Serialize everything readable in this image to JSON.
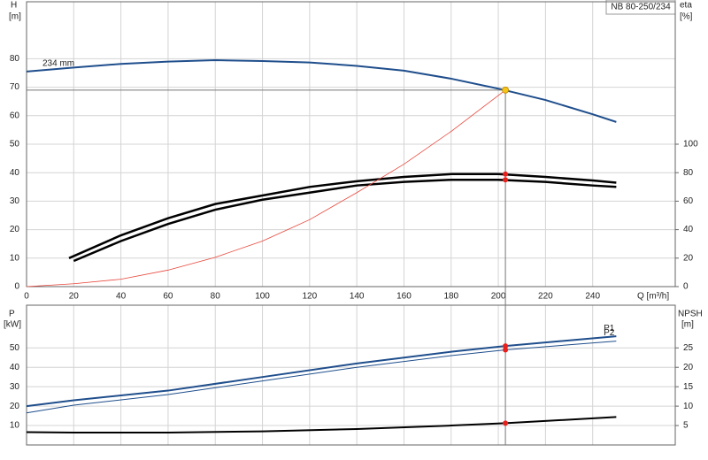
{
  "chart_data": [
    {
      "type": "line",
      "title": "NB 80-250/234",
      "xlabel": "Q [m³/h]",
      "ylabel": "H",
      "yunit": "[m]",
      "y2label": "eta",
      "y2unit": "[%]",
      "xlim": [
        0,
        275
      ],
      "xticks": [
        0,
        20,
        40,
        60,
        80,
        100,
        120,
        140,
        160,
        180,
        200,
        220,
        240
      ],
      "ylim": [
        0,
        100
      ],
      "yticks": [
        0,
        10,
        20,
        30,
        40,
        50,
        60,
        70,
        80
      ],
      "y2lim": [
        0,
        200
      ],
      "y2ticks": [
        0,
        20,
        40,
        60,
        80,
        100
      ],
      "grid": true,
      "series": [
        {
          "name": "234 mm",
          "label_position": "start",
          "color": "#1f4e8c",
          "width": 2,
          "x": [
            0,
            20,
            40,
            60,
            80,
            100,
            120,
            140,
            160,
            180,
            200,
            220,
            240,
            250
          ],
          "values": [
            75.5,
            76.9,
            78.2,
            79,
            79.5,
            79.2,
            78.7,
            77.5,
            75.8,
            73,
            69.5,
            65.5,
            60.5,
            57.8
          ]
        },
        {
          "color": "#000000",
          "width": 2.5,
          "axis": "y2",
          "x": [
            18,
            40,
            60,
            80,
            100,
            120,
            140,
            160,
            180,
            200,
            220,
            240,
            250
          ],
          "values": [
            20,
            36,
            48,
            58,
            64,
            70,
            74,
            77,
            79,
            79,
            77,
            74.5,
            73
          ]
        },
        {
          "color": "#000000",
          "width": 2.5,
          "axis": "y2",
          "x": [
            20,
            40,
            60,
            80,
            100,
            120,
            140,
            160,
            180,
            200,
            220,
            240,
            250
          ],
          "values": [
            18,
            32,
            44,
            54,
            61,
            66,
            71,
            73.5,
            75,
            75,
            73.5,
            71,
            70
          ]
        },
        {
          "color": "#e8463a",
          "width": 0.8,
          "x": [
            0,
            20,
            40,
            60,
            80,
            100,
            120,
            140,
            160,
            180,
            203
          ],
          "values": [
            0,
            1,
            2.6,
            5.8,
            10.3,
            16,
            23.5,
            33,
            43,
            54.5,
            69
          ]
        }
      ],
      "duty_point": {
        "x": 203,
        "y": 69,
        "color": "#f5c518"
      },
      "point_color": "#e8201c",
      "points": [
        {
          "x": 203,
          "y": 79,
          "axis": "y2"
        },
        {
          "x": 203,
          "y": 75,
          "axis": "y2"
        }
      ]
    },
    {
      "type": "line",
      "ylabel": "P",
      "yunit": "[kW]",
      "y2label": "NPSH",
      "y2unit": "[m]",
      "ylim": [
        0,
        72
      ],
      "yticks": [
        10,
        20,
        30,
        40,
        50
      ],
      "y2lim": [
        0,
        36
      ],
      "y2ticks": [
        5,
        10,
        15,
        20,
        25
      ],
      "grid": true,
      "series": [
        {
          "name": "P1",
          "label_position": "end",
          "color": "#1f4e8c",
          "width": 2,
          "x": [
            0,
            20,
            60,
            100,
            140,
            180,
            203,
            250
          ],
          "values": [
            20,
            23,
            28,
            35,
            42,
            48,
            51,
            56
          ]
        },
        {
          "name": "P2",
          "label_position": "end",
          "color": "#1f4e8c",
          "width": 1,
          "x": [
            0,
            20,
            60,
            100,
            140,
            180,
            203,
            250
          ],
          "values": [
            16.5,
            20.5,
            26,
            33,
            40,
            46,
            49,
            53.5
          ]
        },
        {
          "color": "#000000",
          "width": 2,
          "axis": "y2",
          "x": [
            0,
            20,
            60,
            100,
            140,
            180,
            203,
            250
          ],
          "values": [
            3.3,
            3.2,
            3.2,
            3.5,
            4.1,
            5,
            5.6,
            7.2
          ]
        }
      ],
      "point_color": "#e8201c",
      "points": [
        {
          "x": 203,
          "y": 51
        },
        {
          "x": 203,
          "y": 49
        },
        {
          "x": 203,
          "y": 5.6,
          "axis": "y2"
        }
      ]
    }
  ]
}
